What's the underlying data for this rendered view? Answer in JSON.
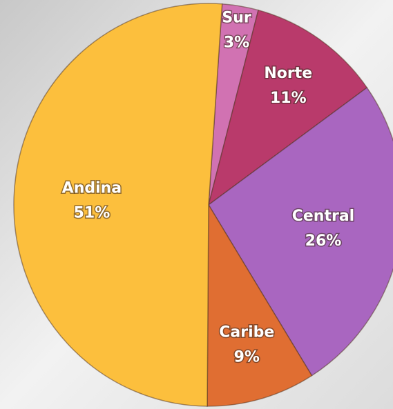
{
  "chart_data": {
    "type": "pie",
    "categories": [
      "Sur",
      "Norte",
      "Central",
      "Caribe",
      "Andina"
    ],
    "values": [
      3,
      11,
      26,
      9,
      51
    ],
    "value_labels": [
      "3%",
      "11%",
      "26%",
      "9%",
      "51%"
    ],
    "colors": [
      "#d172b2",
      "#b93a6b",
      "#a966c0",
      "#e06e32",
      "#fcbf3d"
    ]
  }
}
